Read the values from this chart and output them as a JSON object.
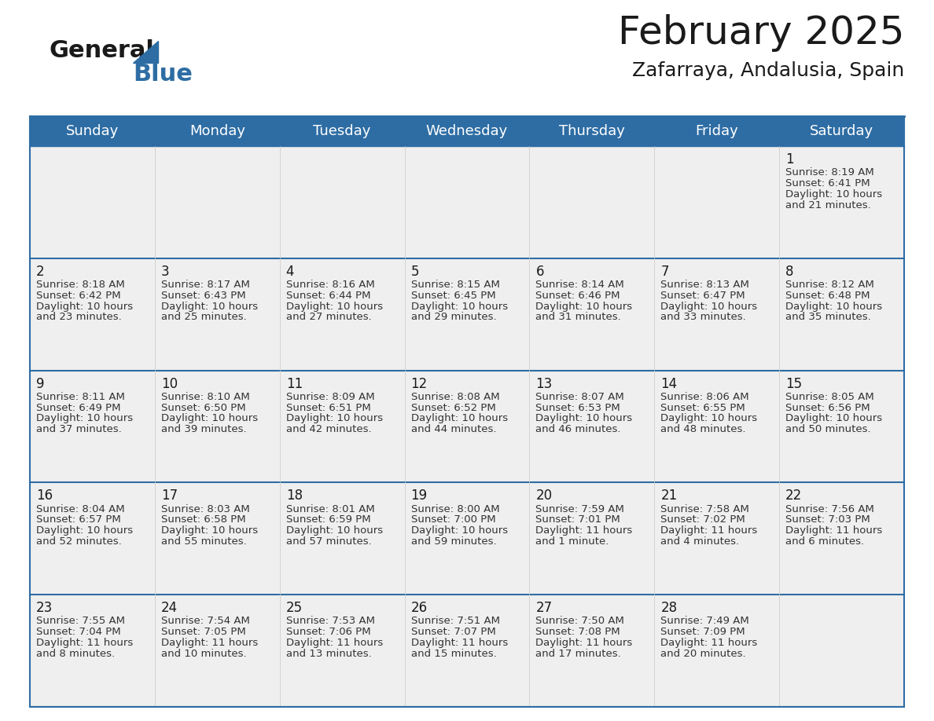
{
  "title": "February 2025",
  "subtitle": "Zafarraya, Andalusia, Spain",
  "header_bg": "#2E6DA4",
  "header_text_color": "#FFFFFF",
  "cell_bg": "#EFEFEF",
  "row_line_color": "#2E6DA4",
  "col_line_color": "#C8C8C8",
  "day_names": [
    "Sunday",
    "Monday",
    "Tuesday",
    "Wednesday",
    "Thursday",
    "Friday",
    "Saturday"
  ],
  "days": [
    {
      "day": 1,
      "col": 6,
      "row": 0,
      "sunrise": "8:19 AM",
      "sunset": "6:41 PM",
      "daylight": "10 hours and 21 minutes."
    },
    {
      "day": 2,
      "col": 0,
      "row": 1,
      "sunrise": "8:18 AM",
      "sunset": "6:42 PM",
      "daylight": "10 hours and 23 minutes."
    },
    {
      "day": 3,
      "col": 1,
      "row": 1,
      "sunrise": "8:17 AM",
      "sunset": "6:43 PM",
      "daylight": "10 hours and 25 minutes."
    },
    {
      "day": 4,
      "col": 2,
      "row": 1,
      "sunrise": "8:16 AM",
      "sunset": "6:44 PM",
      "daylight": "10 hours and 27 minutes."
    },
    {
      "day": 5,
      "col": 3,
      "row": 1,
      "sunrise": "8:15 AM",
      "sunset": "6:45 PM",
      "daylight": "10 hours and 29 minutes."
    },
    {
      "day": 6,
      "col": 4,
      "row": 1,
      "sunrise": "8:14 AM",
      "sunset": "6:46 PM",
      "daylight": "10 hours and 31 minutes."
    },
    {
      "day": 7,
      "col": 5,
      "row": 1,
      "sunrise": "8:13 AM",
      "sunset": "6:47 PM",
      "daylight": "10 hours and 33 minutes."
    },
    {
      "day": 8,
      "col": 6,
      "row": 1,
      "sunrise": "8:12 AM",
      "sunset": "6:48 PM",
      "daylight": "10 hours and 35 minutes."
    },
    {
      "day": 9,
      "col": 0,
      "row": 2,
      "sunrise": "8:11 AM",
      "sunset": "6:49 PM",
      "daylight": "10 hours and 37 minutes."
    },
    {
      "day": 10,
      "col": 1,
      "row": 2,
      "sunrise": "8:10 AM",
      "sunset": "6:50 PM",
      "daylight": "10 hours and 39 minutes."
    },
    {
      "day": 11,
      "col": 2,
      "row": 2,
      "sunrise": "8:09 AM",
      "sunset": "6:51 PM",
      "daylight": "10 hours and 42 minutes."
    },
    {
      "day": 12,
      "col": 3,
      "row": 2,
      "sunrise": "8:08 AM",
      "sunset": "6:52 PM",
      "daylight": "10 hours and 44 minutes."
    },
    {
      "day": 13,
      "col": 4,
      "row": 2,
      "sunrise": "8:07 AM",
      "sunset": "6:53 PM",
      "daylight": "10 hours and 46 minutes."
    },
    {
      "day": 14,
      "col": 5,
      "row": 2,
      "sunrise": "8:06 AM",
      "sunset": "6:55 PM",
      "daylight": "10 hours and 48 minutes."
    },
    {
      "day": 15,
      "col": 6,
      "row": 2,
      "sunrise": "8:05 AM",
      "sunset": "6:56 PM",
      "daylight": "10 hours and 50 minutes."
    },
    {
      "day": 16,
      "col": 0,
      "row": 3,
      "sunrise": "8:04 AM",
      "sunset": "6:57 PM",
      "daylight": "10 hours and 52 minutes."
    },
    {
      "day": 17,
      "col": 1,
      "row": 3,
      "sunrise": "8:03 AM",
      "sunset": "6:58 PM",
      "daylight": "10 hours and 55 minutes."
    },
    {
      "day": 18,
      "col": 2,
      "row": 3,
      "sunrise": "8:01 AM",
      "sunset": "6:59 PM",
      "daylight": "10 hours and 57 minutes."
    },
    {
      "day": 19,
      "col": 3,
      "row": 3,
      "sunrise": "8:00 AM",
      "sunset": "7:00 PM",
      "daylight": "10 hours and 59 minutes."
    },
    {
      "day": 20,
      "col": 4,
      "row": 3,
      "sunrise": "7:59 AM",
      "sunset": "7:01 PM",
      "daylight": "11 hours and 1 minute."
    },
    {
      "day": 21,
      "col": 5,
      "row": 3,
      "sunrise": "7:58 AM",
      "sunset": "7:02 PM",
      "daylight": "11 hours and 4 minutes."
    },
    {
      "day": 22,
      "col": 6,
      "row": 3,
      "sunrise": "7:56 AM",
      "sunset": "7:03 PM",
      "daylight": "11 hours and 6 minutes."
    },
    {
      "day": 23,
      "col": 0,
      "row": 4,
      "sunrise": "7:55 AM",
      "sunset": "7:04 PM",
      "daylight": "11 hours and 8 minutes."
    },
    {
      "day": 24,
      "col": 1,
      "row": 4,
      "sunrise": "7:54 AM",
      "sunset": "7:05 PM",
      "daylight": "11 hours and 10 minutes."
    },
    {
      "day": 25,
      "col": 2,
      "row": 4,
      "sunrise": "7:53 AM",
      "sunset": "7:06 PM",
      "daylight": "11 hours and 13 minutes."
    },
    {
      "day": 26,
      "col": 3,
      "row": 4,
      "sunrise": "7:51 AM",
      "sunset": "7:07 PM",
      "daylight": "11 hours and 15 minutes."
    },
    {
      "day": 27,
      "col": 4,
      "row": 4,
      "sunrise": "7:50 AM",
      "sunset": "7:08 PM",
      "daylight": "11 hours and 17 minutes."
    },
    {
      "day": 28,
      "col": 5,
      "row": 4,
      "sunrise": "7:49 AM",
      "sunset": "7:09 PM",
      "daylight": "11 hours and 20 minutes."
    }
  ],
  "num_rows": 5,
  "num_cols": 7,
  "title_fontsize": 36,
  "subtitle_fontsize": 18,
  "header_fontsize": 13,
  "day_number_fontsize": 12,
  "cell_text_fontsize": 9.5
}
